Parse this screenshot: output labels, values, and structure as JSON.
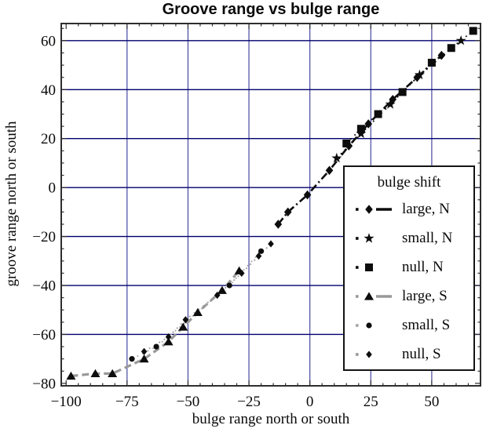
{
  "chart_data": {
    "type": "line",
    "title": "Groove range vs bulge range",
    "xlabel": "bulge range north or south",
    "ylabel": "groove range north or south",
    "xlim": [
      -102,
      70
    ],
    "ylim": [
      -81,
      67
    ],
    "grid": true,
    "x_major_ticks": [
      -100,
      -75,
      -50,
      -25,
      0,
      25,
      50
    ],
    "x_tick_labels": [
      "−100",
      "−75",
      "−50",
      "−25",
      "0",
      "25",
      "50"
    ],
    "y_major_ticks": [
      -80,
      -60,
      -40,
      -20,
      0,
      20,
      40,
      60
    ],
    "y_tick_labels": [
      "−80",
      "−60",
      "−40",
      "−20",
      "0",
      "20",
      "40",
      "60"
    ],
    "minor_tick_step": 5,
    "x_gridlines": [
      -75,
      -50,
      -25,
      0,
      25,
      50
    ],
    "y_gridlines": [
      -60,
      -40,
      -20,
      0,
      20,
      40,
      60
    ],
    "legend_position": "inside lower right",
    "colors": {
      "background": "#ffffff",
      "grid_vertical": "#4747a3",
      "grid_horizontal": "#00006e",
      "frame": "#2e2e2e",
      "marker": "#0d0d0d",
      "series_black": "#0d0d0d",
      "series_gray": "#999999"
    },
    "series": [
      {
        "name": "large, N",
        "marker": "diamond",
        "line": "dash-dot",
        "line_color": "#0d0d0d",
        "points": [
          [
            -13,
            -15
          ],
          [
            -9,
            -10
          ],
          [
            -1,
            -3
          ],
          [
            8,
            7
          ],
          [
            16,
            17
          ],
          [
            24,
            26
          ],
          [
            34,
            36
          ],
          [
            44,
            45
          ],
          [
            54,
            54
          ]
        ]
      },
      {
        "name": "small, N",
        "marker": "star",
        "line": "dotted",
        "line_color": "#0d0d0d",
        "points": [
          [
            11,
            12
          ],
          [
            21,
            22
          ],
          [
            33,
            34
          ],
          [
            45,
            46
          ],
          [
            62,
            60
          ]
        ]
      },
      {
        "name": "null, N",
        "marker": "square",
        "line": "dotted",
        "line_color": "#0d0d0d",
        "points": [
          [
            15,
            18
          ],
          [
            21,
            24
          ],
          [
            28,
            30
          ],
          [
            38,
            39
          ],
          [
            50,
            51
          ],
          [
            58,
            57
          ],
          [
            67,
            64
          ]
        ]
      },
      {
        "name": "large, S",
        "marker": "triangle",
        "line": "dashed",
        "line_color": "#999999",
        "points": [
          [
            -98,
            -77
          ],
          [
            -88,
            -76
          ],
          [
            -81,
            -76
          ],
          [
            -68,
            -70
          ],
          [
            -58,
            -63
          ],
          [
            -52,
            -57
          ],
          [
            -46,
            -51
          ],
          [
            -36,
            -42
          ],
          [
            -29,
            -34
          ]
        ]
      },
      {
        "name": "small, S",
        "marker": "circle",
        "line": "dotted",
        "line_color": "#a6a6a6",
        "points": [
          [
            -73,
            -70
          ],
          [
            -63,
            -65
          ],
          [
            -33,
            -40
          ],
          [
            -20,
            -26
          ]
        ]
      },
      {
        "name": "null, S",
        "marker": "diamond-small",
        "line": "dotted",
        "line_color": "#999999",
        "points": [
          [
            -68,
            -67
          ],
          [
            -58,
            -61
          ],
          [
            -51,
            -54
          ],
          [
            -38,
            -44
          ],
          [
            -28,
            -35
          ],
          [
            -21,
            -28
          ],
          [
            -16,
            -23
          ]
        ]
      }
    ]
  },
  "legend": {
    "title": "bulge shift",
    "entries": [
      {
        "label": "large, N",
        "marker": "diamond",
        "line_color": "#0d0d0d",
        "show_line": true
      },
      {
        "label": "small, N",
        "marker": "star",
        "line_color": "#0d0d0d",
        "show_line": false
      },
      {
        "label": "null, N",
        "marker": "square",
        "line_color": "#0d0d0d",
        "show_line": false
      },
      {
        "label": "large, S",
        "marker": "triangle",
        "line_color": "#999999",
        "show_line": true
      },
      {
        "label": "small, S",
        "marker": "circle",
        "line_color": "#a6a6a6",
        "show_line": false
      },
      {
        "label": "null, S",
        "marker": "diamond-small",
        "line_color": "#999999",
        "show_line": false
      }
    ]
  }
}
